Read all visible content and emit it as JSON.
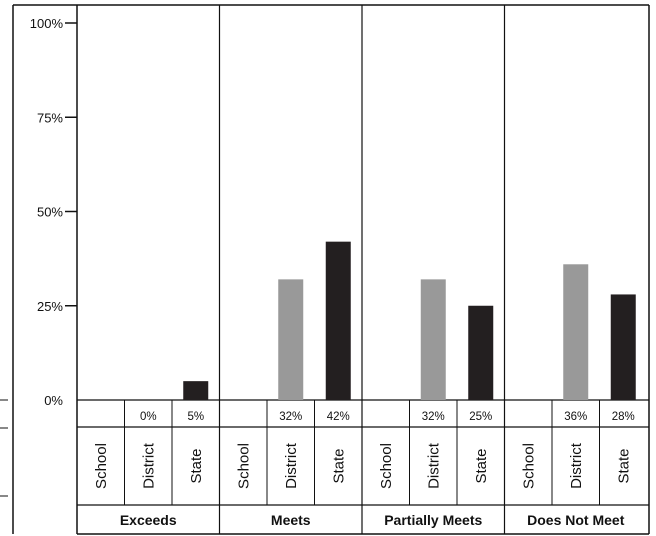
{
  "chart_data": {
    "type": "bar",
    "y_ticks": [
      "0%",
      "25%",
      "50%",
      "75%",
      "100%"
    ],
    "ylim": [
      0,
      100
    ],
    "grid": false,
    "groups": [
      {
        "label": "Exceeds",
        "bars": [
          {
            "category": "School",
            "value": null,
            "label": ""
          },
          {
            "category": "District",
            "value": 0,
            "label": "0%"
          },
          {
            "category": "State",
            "value": 5,
            "label": "5%"
          }
        ]
      },
      {
        "label": "Meets",
        "bars": [
          {
            "category": "School",
            "value": null,
            "label": ""
          },
          {
            "category": "District",
            "value": 32,
            "label": "32%"
          },
          {
            "category": "State",
            "value": 42,
            "label": "42%"
          }
        ]
      },
      {
        "label": "Partially Meets",
        "bars": [
          {
            "category": "School",
            "value": null,
            "label": ""
          },
          {
            "category": "District",
            "value": 32,
            "label": "32%"
          },
          {
            "category": "State",
            "value": 25,
            "label": "25%"
          }
        ]
      },
      {
        "label": "Does Not Meet",
        "bars": [
          {
            "category": "School",
            "value": null,
            "label": ""
          },
          {
            "category": "District",
            "value": 36,
            "label": "36%"
          },
          {
            "category": "State",
            "value": 28,
            "label": "28%"
          }
        ]
      }
    ],
    "colors": {
      "School": "#ffffff",
      "District": "#999999",
      "State": "#231f20"
    }
  }
}
